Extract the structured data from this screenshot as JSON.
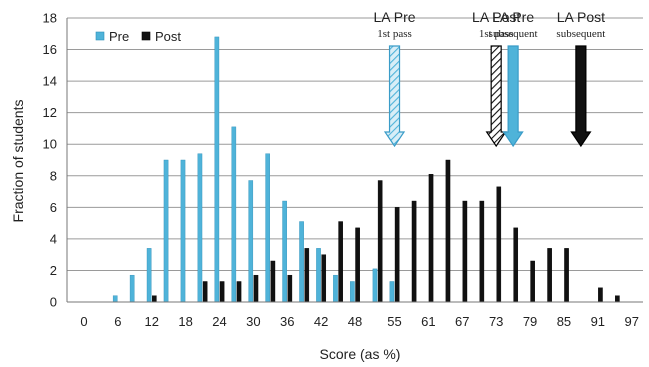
{
  "chart_data": {
    "type": "bar",
    "title": "",
    "xlabel": "Score (as %)",
    "ylabel": "Fraction of students",
    "ylim": [
      0,
      18
    ],
    "yticks": [
      0,
      2,
      4,
      6,
      8,
      10,
      12,
      14,
      16,
      18
    ],
    "xticks": [
      "0",
      "6",
      "12",
      "18",
      "24",
      "30",
      "36",
      "42",
      "48",
      "55",
      "61",
      "67",
      "73",
      "79",
      "85",
      "91",
      "97"
    ],
    "grid": "horizontal",
    "legend_position": "top-left",
    "series": [
      {
        "name": "Pre",
        "color": "#4fb3d9",
        "x": [
          6,
          9,
          12,
          15,
          18,
          21,
          24,
          27,
          30,
          33,
          36,
          39,
          42,
          45,
          48,
          52,
          55
        ],
        "values": [
          0.4,
          1.7,
          3.4,
          9.0,
          9.0,
          9.4,
          16.8,
          11.1,
          7.7,
          9.4,
          6.4,
          5.1,
          3.4,
          1.7,
          1.3,
          2.1,
          1.3
        ]
      },
      {
        "name": "Post",
        "color": "#111111",
        "x": [
          12,
          21,
          24,
          27,
          30,
          33,
          36,
          39,
          42,
          45,
          48,
          52,
          55,
          58,
          61,
          64,
          67,
          70,
          73,
          76,
          79,
          82,
          85,
          91,
          94
        ],
        "values": [
          0.4,
          1.3,
          1.3,
          1.3,
          1.7,
          2.6,
          1.7,
          3.4,
          3.0,
          5.1,
          4.7,
          7.7,
          6.0,
          6.4,
          8.1,
          9.0,
          6.4,
          6.4,
          7.3,
          4.7,
          2.6,
          3.4,
          3.4,
          0.9,
          0.4
        ]
      }
    ],
    "annotations": [
      {
        "title": "LA Pre",
        "subtitle": "1st pass",
        "x": 55,
        "style": "hatched",
        "color": "#4fb3d9"
      },
      {
        "title": "LA Post",
        "subtitle": "1st pass",
        "x": 73,
        "style": "hatched",
        "color": "#111111"
      },
      {
        "title": "LA Pre",
        "subtitle": "subsequent",
        "x": 76,
        "style": "solid",
        "color": "#4fb3d9"
      },
      {
        "title": "LA Post",
        "subtitle": "subsequent",
        "x": 88,
        "style": "solid",
        "color": "#111111"
      }
    ]
  }
}
